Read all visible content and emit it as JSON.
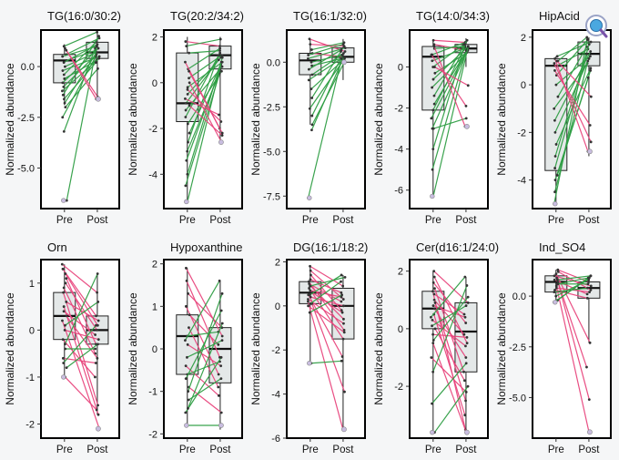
{
  "ui": {
    "zoom_tool": "magnifier-icon",
    "zoom_colors": {
      "ring": "#9aa3c6",
      "lens": "#4aa8e0",
      "handle": "#7a52a8"
    }
  },
  "chart_data": {
    "type": "paired-boxplot",
    "rows": 2,
    "cols": 5,
    "groups": [
      "Pre",
      "Post"
    ],
    "ylabel": "Normalized abundance",
    "colors": {
      "increase": "#2f9e44",
      "decrease": "#e8457d",
      "box_fill": "#e4e8e8",
      "box_edge": "#222222",
      "point": "#333333",
      "highlight": "#c9bde0"
    },
    "panels": [
      {
        "title": "TG(16:0/30:2)",
        "ylim": [
          -7.0,
          1.8
        ],
        "yticks": [
          0.0,
          -2.5,
          -5.0
        ],
        "tick_labels": [
          "0.0",
          "-2.5",
          "-5.0"
        ],
        "box": {
          "Pre": [
            -1.9,
            -0.8,
            0.3,
            0.6,
            1.1
          ],
          "Post": [
            -1.5,
            0.4,
            0.7,
            1.2,
            1.7
          ]
        },
        "pairs": [
          [
            0.6,
            1.4
          ],
          [
            0.5,
            1.0
          ],
          [
            0.3,
            0.8
          ],
          [
            0.2,
            1.1
          ],
          [
            0.0,
            0.7
          ],
          [
            -0.2,
            0.5
          ],
          [
            -0.4,
            1.2
          ],
          [
            -0.6,
            0.3
          ],
          [
            -0.8,
            0.9
          ],
          [
            -1.0,
            0.6
          ],
          [
            -1.2,
            0.4
          ],
          [
            -1.4,
            1.5
          ],
          [
            -1.6,
            0.2
          ],
          [
            -1.8,
            0.7
          ],
          [
            -2.0,
            -0.1
          ],
          [
            -2.5,
            0.5
          ],
          [
            -3.2,
            0.9
          ],
          [
            -6.6,
            1.0
          ],
          [
            0.9,
            -1.5
          ],
          [
            0.8,
            -1.6
          ],
          [
            1.0,
            1.7
          ]
        ]
      },
      {
        "title": "TG(20:2/34:2)",
        "ylim": [
          -5.5,
          2.3
        ],
        "yticks": [
          2,
          0,
          -2,
          -4
        ],
        "tick_labels": [
          "2",
          "0",
          "-2",
          "-4"
        ],
        "box": {
          "Pre": [
            -5.2,
            -1.7,
            -0.9,
            1.3,
            2.0
          ],
          "Post": [
            -2.5,
            0.6,
            1.2,
            1.6,
            2.0
          ]
        },
        "pairs": [
          [
            1.8,
            1.6
          ],
          [
            1.6,
            1.9
          ],
          [
            1.3,
            1.4
          ],
          [
            0.6,
            1.5
          ],
          [
            0.2,
            1.2
          ],
          [
            -0.2,
            0.9
          ],
          [
            -0.5,
            1.1
          ],
          [
            -0.9,
            1.0
          ],
          [
            -1.2,
            0.7
          ],
          [
            -1.5,
            1.3
          ],
          [
            -1.8,
            0.5
          ],
          [
            -2.2,
            0.8
          ],
          [
            -2.6,
            1.2
          ],
          [
            -3.0,
            0.3
          ],
          [
            -3.4,
            0.6
          ],
          [
            -4.0,
            1.1
          ],
          [
            -4.5,
            0.4
          ],
          [
            -5.2,
            0.9
          ],
          [
            0.9,
            -2.0
          ],
          [
            0.5,
            -2.2
          ],
          [
            0.0,
            -2.6
          ],
          [
            -0.3,
            -1.7
          ],
          [
            -0.7,
            -1.4
          ],
          [
            -1.0,
            -2.3
          ]
        ]
      },
      {
        "title": "TG(16:1/32:0)",
        "ylim": [
          -8.2,
          1.8
        ],
        "yticks": [
          0.0,
          -2.5,
          -5.0,
          -7.5
        ],
        "tick_labels": [
          "0.0",
          "-2.5",
          "-5.0",
          "-7.5"
        ],
        "box": {
          "Pre": [
            -3.5,
            -0.7,
            0.1,
            0.5,
            1.3
          ],
          "Post": [
            -1.0,
            0.0,
            0.3,
            0.8,
            1.3
          ]
        },
        "pairs": [
          [
            1.3,
            0.6
          ],
          [
            1.0,
            0.9
          ],
          [
            0.7,
            1.1
          ],
          [
            0.5,
            0.3
          ],
          [
            0.4,
            1.0
          ],
          [
            0.2,
            0.8
          ],
          [
            0.0,
            0.4
          ],
          [
            -0.2,
            0.2
          ],
          [
            -0.4,
            0.7
          ],
          [
            -0.7,
            0.5
          ],
          [
            -1.0,
            0.3
          ],
          [
            -1.5,
            0.1
          ],
          [
            -2.0,
            0.6
          ],
          [
            -2.6,
            0.2
          ],
          [
            -3.0,
            0.4
          ],
          [
            -3.5,
            0.0
          ],
          [
            -3.8,
            0.3
          ],
          [
            -7.6,
            0.2
          ]
        ]
      },
      {
        "title": "TG(14:0/34:3)",
        "ylim": [
          -6.9,
          1.8
        ],
        "yticks": [
          0,
          -2,
          -4,
          -6
        ],
        "tick_labels": [
          "0",
          "-2",
          "-4",
          "-6"
        ],
        "box": {
          "Pre": [
            -6.3,
            -2.1,
            0.5,
            1.0,
            1.3
          ],
          "Post": [
            0.0,
            0.7,
            0.9,
            1.1,
            1.4
          ]
        },
        "pairs": [
          [
            1.3,
            1.2
          ],
          [
            1.1,
            0.8
          ],
          [
            0.9,
            1.0
          ],
          [
            0.6,
            1.2
          ],
          [
            0.3,
            0.9
          ],
          [
            0.0,
            1.1
          ],
          [
            -0.3,
            0.7
          ],
          [
            -0.6,
            1.0
          ],
          [
            -1.0,
            0.6
          ],
          [
            -1.4,
            1.3
          ],
          [
            -1.8,
            0.8
          ],
          [
            -2.1,
            1.0
          ],
          [
            -2.5,
            0.9
          ],
          [
            -3.0,
            0.7
          ],
          [
            -4.0,
            1.1
          ],
          [
            -5.0,
            0.8
          ],
          [
            -6.3,
            1.0
          ],
          [
            -3.0,
            -2.5
          ],
          [
            0.0,
            -0.9
          ],
          [
            1.0,
            -2.9
          ],
          [
            0.6,
            -1.9
          ]
        ]
      },
      {
        "title": "HipAcid",
        "ylim": [
          -5.2,
          2.3
        ],
        "yticks": [
          2,
          0,
          -2,
          -4
        ],
        "tick_labels": [
          "2",
          "0",
          "-2",
          "-4"
        ],
        "box": {
          "Pre": [
            -5.0,
            -3.6,
            0.8,
            1.1,
            1.2
          ],
          "Post": [
            -3.0,
            0.8,
            1.3,
            1.8,
            2.0
          ]
        },
        "pairs": [
          [
            1.2,
            1.8
          ],
          [
            1.0,
            2.0
          ],
          [
            0.8,
            1.5
          ],
          [
            0.4,
            1.9
          ],
          [
            0.0,
            1.2
          ],
          [
            -0.5,
            1.6
          ],
          [
            -1.0,
            0.9
          ],
          [
            -1.5,
            1.4
          ],
          [
            -2.0,
            1.1
          ],
          [
            -2.5,
            0.7
          ],
          [
            -3.0,
            1.7
          ],
          [
            -3.5,
            1.3
          ],
          [
            -4.0,
            0.6
          ],
          [
            -4.5,
            1.0
          ],
          [
            -5.0,
            1.9
          ],
          [
            -3.8,
            0.3
          ],
          [
            1.1,
            -2.8
          ],
          [
            0.9,
            -2.4
          ],
          [
            0.6,
            -1.7
          ],
          [
            1.0,
            -0.5
          ]
        ]
      },
      {
        "title": "Orn",
        "ylim": [
          -2.3,
          1.5
        ],
        "yticks": [
          1,
          0,
          -1,
          -2
        ],
        "tick_labels": [
          "1",
          "0",
          "-1",
          "-2"
        ],
        "box": {
          "Pre": [
            -1.0,
            -0.2,
            0.3,
            0.8,
            1.4
          ],
          "Post": [
            -1.8,
            -0.3,
            0.0,
            0.3,
            1.2
          ]
        },
        "pairs": [
          [
            1.4,
            0.8
          ],
          [
            1.3,
            0.3
          ],
          [
            1.2,
            0.1
          ],
          [
            1.1,
            -0.3
          ],
          [
            1.0,
            0.0
          ],
          [
            0.9,
            -0.5
          ],
          [
            0.8,
            -1.6
          ],
          [
            0.6,
            0.2
          ],
          [
            0.5,
            -1.8
          ],
          [
            0.4,
            -0.1
          ],
          [
            0.3,
            -0.6
          ],
          [
            0.2,
            -2.1
          ],
          [
            0.0,
            -0.2
          ],
          [
            -0.2,
            -1.0
          ],
          [
            -0.4,
            -0.4
          ],
          [
            -0.6,
            -0.7
          ],
          [
            -0.8,
            -0.3
          ],
          [
            -1.0,
            -1.7
          ],
          [
            -0.3,
            1.2
          ],
          [
            0.1,
            0.6
          ],
          [
            -0.7,
            0.1
          ]
        ]
      },
      {
        "title": "Hypoxanthine",
        "ylim": [
          -2.1,
          2.1
        ],
        "yticks": [
          2,
          1,
          0,
          -1,
          -2
        ],
        "tick_labels": [
          "2",
          "1",
          "0",
          "-1",
          "-2"
        ],
        "box": {
          "Pre": [
            -1.8,
            -0.6,
            0.3,
            0.8,
            1.9
          ],
          "Post": [
            -1.9,
            -0.8,
            0.0,
            0.5,
            1.6
          ]
        },
        "pairs": [
          [
            1.9,
            0.3
          ],
          [
            1.6,
            -0.2
          ],
          [
            1.3,
            0.5
          ],
          [
            1.0,
            -0.6
          ],
          [
            0.8,
            0.1
          ],
          [
            0.5,
            -0.9
          ],
          [
            0.3,
            0.4
          ],
          [
            0.1,
            -0.4
          ],
          [
            -0.2,
            0.2
          ],
          [
            -0.4,
            -1.1
          ],
          [
            -0.6,
            -0.3
          ],
          [
            -0.9,
            -1.5
          ],
          [
            -1.2,
            -0.7
          ],
          [
            -1.5,
            -0.2
          ],
          [
            -1.8,
            -1.8
          ],
          [
            -1.4,
            0.6
          ],
          [
            -1.0,
            1.3
          ],
          [
            -0.7,
            0.9
          ],
          [
            0.2,
            1.6
          ]
        ]
      },
      {
        "title": "DG(16:1/18:2)",
        "ylim": [
          -6.0,
          2.1
        ],
        "yticks": [
          2,
          0,
          -2,
          -4,
          -6
        ],
        "tick_labels": [
          "2",
          "0",
          "-2",
          "-4",
          "-6"
        ],
        "box": {
          "Pre": [
            -2.6,
            0.1,
            0.6,
            1.1,
            1.8
          ],
          "Post": [
            -5.6,
            -1.5,
            0.0,
            0.8,
            1.4
          ]
        },
        "pairs": [
          [
            1.8,
            0.9
          ],
          [
            1.6,
            0.3
          ],
          [
            1.4,
            -0.2
          ],
          [
            1.2,
            0.6
          ],
          [
            1.1,
            -1.1
          ],
          [
            1.0,
            0.2
          ],
          [
            0.9,
            -0.6
          ],
          [
            0.8,
            -1.5
          ],
          [
            0.7,
            0.4
          ],
          [
            0.6,
            -0.3
          ],
          [
            0.5,
            -2.3
          ],
          [
            0.4,
            0.0
          ],
          [
            0.3,
            -0.8
          ],
          [
            0.2,
            -5.6
          ],
          [
            0.1,
            -3.9
          ],
          [
            0.0,
            -1.2
          ],
          [
            -0.3,
            0.5
          ],
          [
            -2.6,
            -2.5
          ],
          [
            0.5,
            1.4
          ],
          [
            0.1,
            1.1
          ],
          [
            0.9,
            1.3
          ]
        ]
      },
      {
        "title": "Cer(d16:1/24:0)",
        "ylim": [
          -3.8,
          2.4
        ],
        "yticks": [
          2,
          0,
          -2
        ],
        "tick_labels": [
          "2",
          "0",
          "-2"
        ],
        "box": {
          "Pre": [
            -3.6,
            0.0,
            0.7,
            1.3,
            2.0
          ],
          "Post": [
            -3.6,
            -1.5,
            -0.1,
            0.9,
            1.8
          ]
        },
        "pairs": [
          [
            2.0,
            0.9
          ],
          [
            1.8,
            -0.5
          ],
          [
            1.6,
            0.2
          ],
          [
            1.4,
            -1.5
          ],
          [
            1.3,
            -3.5
          ],
          [
            1.2,
            0.5
          ],
          [
            1.0,
            -0.2
          ],
          [
            0.9,
            -2.5
          ],
          [
            0.8,
            0.4
          ],
          [
            0.7,
            -1.0
          ],
          [
            0.5,
            -3.0
          ],
          [
            0.3,
            -0.6
          ],
          [
            0.1,
            0.8
          ],
          [
            0.0,
            -1.8
          ],
          [
            -0.2,
            -0.3
          ],
          [
            -0.5,
            -3.6
          ],
          [
            -1.0,
            -2.2
          ],
          [
            -2.6,
            -1.2
          ],
          [
            -3.6,
            -2.0
          ],
          [
            -1.5,
            1.5
          ],
          [
            0.4,
            1.8
          ],
          [
            -0.4,
            1.1
          ]
        ]
      },
      {
        "title": "Ind_SO4",
        "ylim": [
          -7.0,
          1.8
        ],
        "yticks": [
          0.0,
          -2.5,
          -5.0
        ],
        "tick_labels": [
          "0.0",
          "-2.5",
          "-5.0"
        ],
        "box": {
          "Pre": [
            -0.3,
            0.2,
            0.7,
            1.0,
            1.3
          ],
          "Post": [
            -2.3,
            -0.1,
            0.4,
            0.7,
            1.0
          ]
        },
        "pairs": [
          [
            1.3,
            0.7
          ],
          [
            1.2,
            0.3
          ],
          [
            1.1,
            -2.3
          ],
          [
            1.0,
            0.5
          ],
          [
            0.9,
            -3.5
          ],
          [
            0.8,
            0.1
          ],
          [
            0.7,
            -5.1
          ],
          [
            0.6,
            0.6
          ],
          [
            0.5,
            -6.7
          ],
          [
            0.4,
            0.2
          ],
          [
            0.3,
            -0.1
          ],
          [
            0.2,
            0.4
          ],
          [
            0.0,
            0.8
          ],
          [
            -0.2,
            1.0
          ],
          [
            -0.3,
            0.9
          ],
          [
            0.6,
            0.9
          ],
          [
            0.8,
            1.0
          ]
        ]
      }
    ]
  }
}
